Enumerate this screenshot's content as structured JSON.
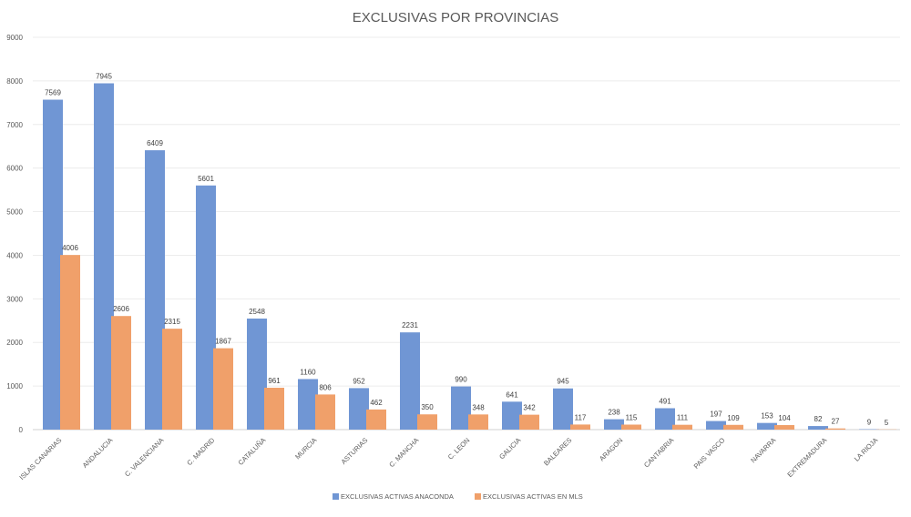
{
  "chart_data": {
    "type": "bar",
    "title": "EXCLUSIVAS POR PROVINCIAS",
    "xlabel": "",
    "ylabel": "",
    "ylim": [
      0,
      9000
    ],
    "yticks": [
      0,
      1000,
      2000,
      3000,
      4000,
      5000,
      6000,
      7000,
      8000,
      9000
    ],
    "grid": true,
    "legend_position": "bottom",
    "categories": [
      "ISLAS CANARIAS",
      "ANDALUCIA",
      "C. VALENCIANA",
      "C. MADRID",
      "CATALUÑA",
      "MURCIA",
      "ASTURIAS",
      "C. MANCHA",
      "C. LEON",
      "GALICIA",
      "BALEARES",
      "ARAGON",
      "CANTABRIA",
      "PAIS VASCO",
      "NAVARRA",
      "EXTREMADURA",
      "LA RIOJA"
    ],
    "series": [
      {
        "name": "EXCLUSIVAS ACTIVAS ANACONDA",
        "color": "#7096D4",
        "values": [
          7569,
          7945,
          6409,
          5601,
          2548,
          1160,
          952,
          2231,
          990,
          641,
          945,
          238,
          491,
          197,
          153,
          82,
          9
        ]
      },
      {
        "name": "EXCLUSIVAS ACTIVAS EN MLS",
        "color": "#F0A06A",
        "values": [
          4006,
          2606,
          2315,
          1867,
          961,
          806,
          462,
          350,
          348,
          342,
          117,
          115,
          111,
          109,
          104,
          27,
          5
        ]
      }
    ]
  }
}
